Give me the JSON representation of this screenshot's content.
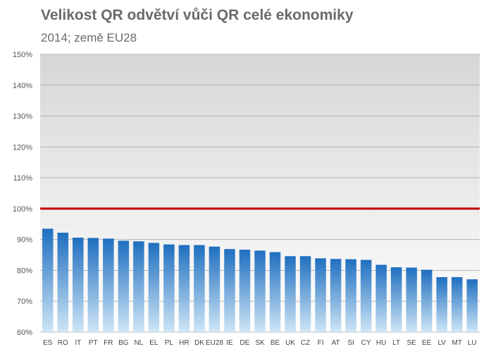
{
  "chart_data": {
    "type": "bar",
    "title": "Velikost QR odvětví vůči QR celé ekonomiky",
    "subtitle": "2014; země EU28",
    "categories": [
      "ES",
      "RO",
      "IT",
      "PT",
      "FR",
      "BG",
      "NL",
      "EL",
      "PL",
      "HR",
      "DK",
      "EU28",
      "IE",
      "DE",
      "SK",
      "BE",
      "UK",
      "CZ",
      "FI",
      "AT",
      "SI",
      "CY",
      "HU",
      "LT",
      "SE",
      "EE",
      "LV",
      "MT",
      "LU"
    ],
    "values": [
      93.5,
      92.2,
      90.6,
      90.5,
      90.3,
      89.6,
      89.4,
      88.9,
      88.4,
      88.2,
      88.2,
      87.7,
      86.9,
      86.7,
      86.4,
      85.9,
      84.6,
      84.6,
      83.9,
      83.7,
      83.6,
      83.4,
      81.8,
      81.0,
      80.9,
      80.2,
      77.8,
      77.8,
      77.1
    ],
    "value_unit": "%",
    "ylim": [
      60,
      150
    ],
    "yticks": [
      "60%",
      "70%",
      "80%",
      "90%",
      "100%",
      "110%",
      "120%",
      "130%",
      "140%",
      "150%"
    ],
    "reference_line": {
      "value": 100,
      "color": "#c00000"
    },
    "grid": true,
    "bar_color_top": "#1f6fc0",
    "bar_color_bottom": "#cfe6f6",
    "xlabel": "",
    "ylabel": ""
  }
}
